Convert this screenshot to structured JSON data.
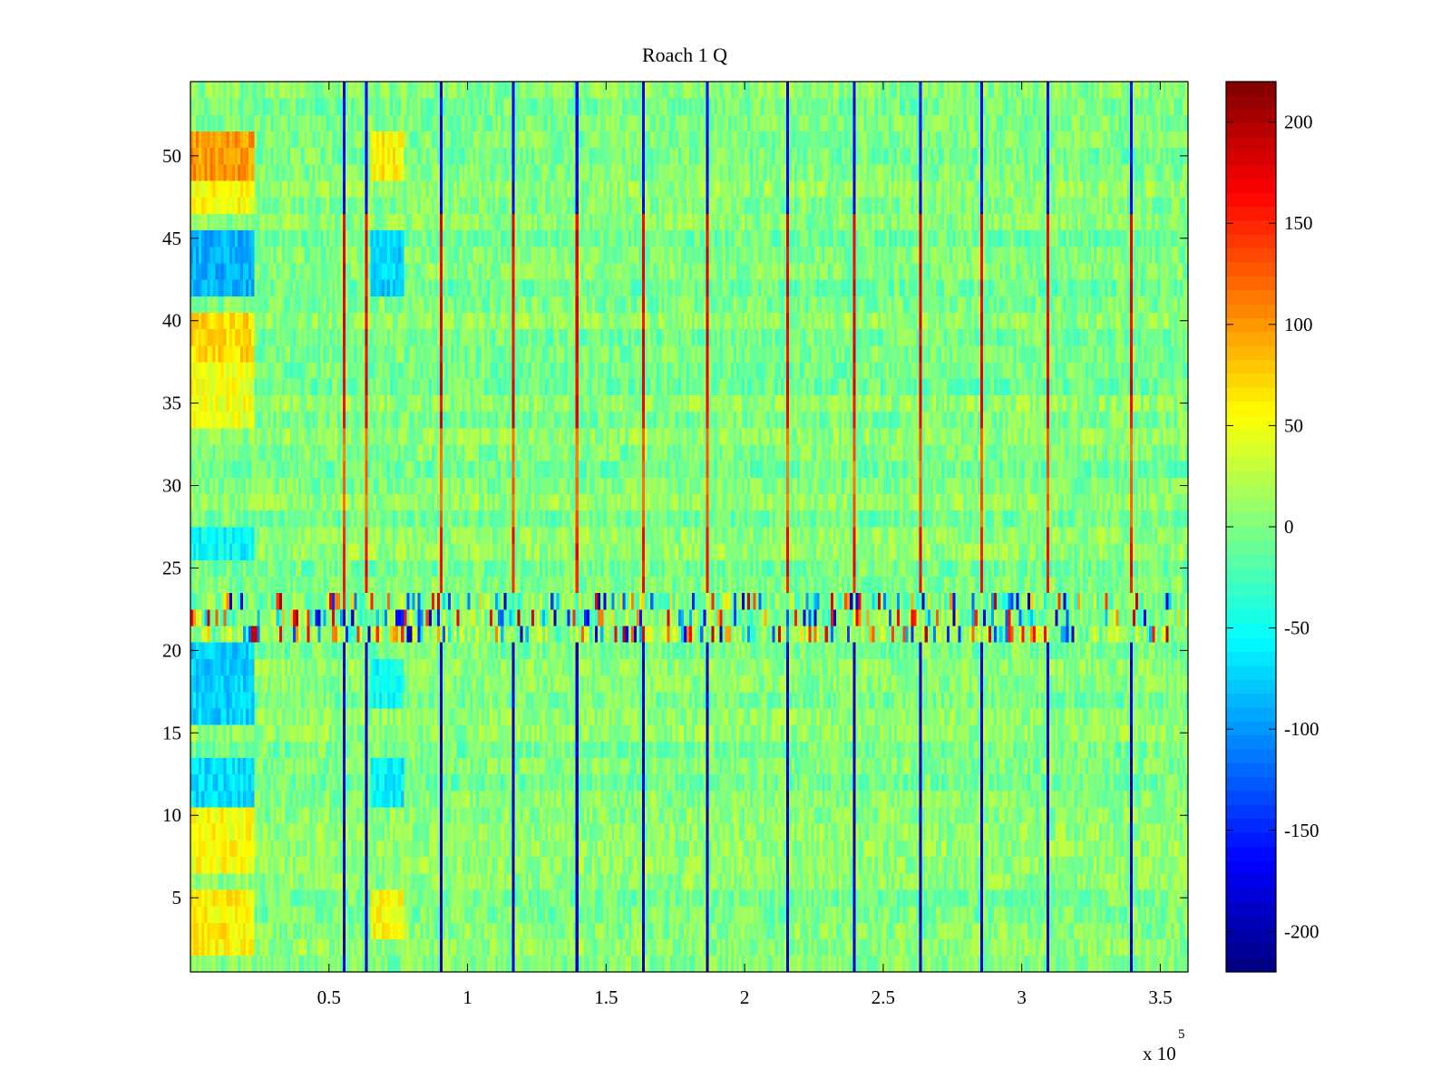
{
  "chart_data": {
    "type": "heatmap",
    "title": "Roach 1 Q",
    "xlabel": "",
    "ylabel": "",
    "x_exponent_label": "x 10",
    "x_exponent_power": "5",
    "xlim": [
      0,
      360000
    ],
    "ylim": [
      0.5,
      54.5
    ],
    "x_ticks": [
      {
        "value": 50000,
        "label": "0.5"
      },
      {
        "value": 100000,
        "label": "1"
      },
      {
        "value": 150000,
        "label": "1.5"
      },
      {
        "value": 200000,
        "label": "2"
      },
      {
        "value": 250000,
        "label": "2.5"
      },
      {
        "value": 300000,
        "label": "3"
      },
      {
        "value": 350000,
        "label": "3.5"
      }
    ],
    "y_ticks": [
      {
        "value": 5,
        "label": "5"
      },
      {
        "value": 10,
        "label": "10"
      },
      {
        "value": 15,
        "label": "15"
      },
      {
        "value": 20,
        "label": "20"
      },
      {
        "value": 25,
        "label": "25"
      },
      {
        "value": 30,
        "label": "30"
      },
      {
        "value": 35,
        "label": "35"
      },
      {
        "value": 40,
        "label": "40"
      },
      {
        "value": 45,
        "label": "45"
      },
      {
        "value": 50,
        "label": "50"
      }
    ],
    "rows": 54,
    "colormap": "jet",
    "colorbar": {
      "clim": [
        -220,
        220
      ],
      "ticks": [
        {
          "value": 200,
          "label": "200"
        },
        {
          "value": 150,
          "label": "150"
        },
        {
          "value": 100,
          "label": "100"
        },
        {
          "value": 50,
          "label": "50"
        },
        {
          "value": 0,
          "label": "0"
        },
        {
          "value": -50,
          "label": "-50"
        },
        {
          "value": -100,
          "label": "-100"
        },
        {
          "value": -150,
          "label": "-150"
        },
        {
          "value": -200,
          "label": "-200"
        }
      ]
    },
    "background_value": 0,
    "noise_amplitude": 25,
    "periodic_stripes_x": [
      55000,
      63000,
      90000,
      116000,
      139000,
      163000,
      186000,
      215000,
      239000,
      263000,
      285000,
      309000,
      339000
    ],
    "stripe_polarity_by_row_band": [
      {
        "rows": [
          1,
          21
        ],
        "value": -190
      },
      {
        "rows": [
          24,
          27
        ],
        "value": 160
      },
      {
        "rows": [
          28,
          33
        ],
        "value": 120
      },
      {
        "rows": [
          34,
          46
        ],
        "value": 170
      },
      {
        "rows": [
          47,
          54
        ],
        "value": -170
      }
    ],
    "noisy_band_rows": [
      21,
      22,
      23
    ],
    "noisy_band_amplitude": 200,
    "early_region_x": [
      0,
      22000
    ],
    "early_region_row_values": [
      {
        "rows": [
          2,
          5
        ],
        "value": 60
      },
      {
        "rows": [
          7,
          10
        ],
        "value": 55
      },
      {
        "rows": [
          11,
          13
        ],
        "value": -70
      },
      {
        "rows": [
          16,
          20
        ],
        "value": -75
      },
      {
        "rows": [
          26,
          27
        ],
        "value": -55
      },
      {
        "rows": [
          34,
          37
        ],
        "value": 50
      },
      {
        "rows": [
          38,
          40
        ],
        "value": 70
      },
      {
        "rows": [
          42,
          45
        ],
        "value": -90
      },
      {
        "rows": [
          47,
          48
        ],
        "value": 55
      },
      {
        "rows": [
          49,
          51
        ],
        "value": 100
      }
    ],
    "secondary_region_x": [
      65000,
      76000
    ],
    "secondary_region_row_values": [
      {
        "rows": [
          3,
          5
        ],
        "value": 55
      },
      {
        "rows": [
          11,
          13
        ],
        "value": -60
      },
      {
        "rows": [
          17,
          19
        ],
        "value": -50
      },
      {
        "rows": [
          42,
          45
        ],
        "value": -75
      },
      {
        "rows": [
          49,
          51
        ],
        "value": 60
      }
    ]
  }
}
